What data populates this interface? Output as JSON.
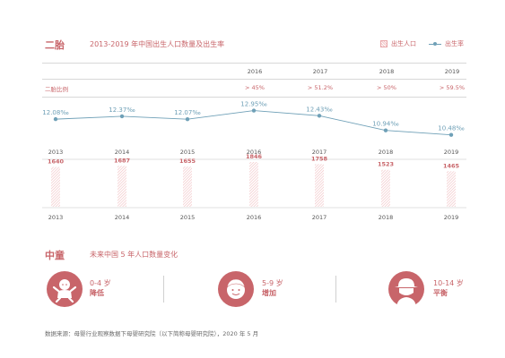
{
  "section1": {
    "label": "二胎",
    "title": "2013-2019 年中国出生人口数量及出生率",
    "legend_births": "出生人口",
    "legend_rate": "出生率",
    "header_years": [
      "2016",
      "2017",
      "2018",
      "2019"
    ],
    "ratio_label": "二胎比例",
    "ratios": [
      "> 45%",
      "> 51.2%",
      "> 50%",
      "> 59.5%"
    ]
  },
  "section2": {
    "label": "中童",
    "title": "未来中国 5 年人口数量变化",
    "groups": [
      {
        "range": "0-4 岁",
        "trend": "降低",
        "icon": "baby-icon"
      },
      {
        "range": "5-9 岁",
        "trend": "增加",
        "icon": "child-icon"
      },
      {
        "range": "10-14 岁",
        "trend": "平衡",
        "icon": "teen-icon"
      }
    ]
  },
  "source": "数据来源：母婴行业观察数据下母婴研究院（以下简称母婴研究院），2020 年 5 月",
  "colors": {
    "accent": "#c8656a",
    "line": "#6fa0b7",
    "bar_hatch": "#f2c4c6"
  },
  "chart_data": [
    {
      "type": "line",
      "x": [
        "2013",
        "2014",
        "2015",
        "2016",
        "2017",
        "2018",
        "2019"
      ],
      "series": [
        {
          "name": "出生率",
          "values": [
            12.08,
            12.37,
            12.07,
            12.95,
            12.43,
            10.94,
            10.48
          ]
        }
      ],
      "value_labels": [
        "12.08‰",
        "12.37‰",
        "12.07‰",
        "12.95‰",
        "12.43‰",
        "10.94‰",
        "10.48‰"
      ],
      "unit": "‰"
    },
    {
      "type": "bar",
      "categories": [
        "2013",
        "2014",
        "2015",
        "2016",
        "2017",
        "2018",
        "2019"
      ],
      "series": [
        {
          "name": "出生人口",
          "values": [
            1640,
            1687,
            1655,
            1846,
            1758,
            1523,
            1465
          ]
        }
      ]
    }
  ]
}
